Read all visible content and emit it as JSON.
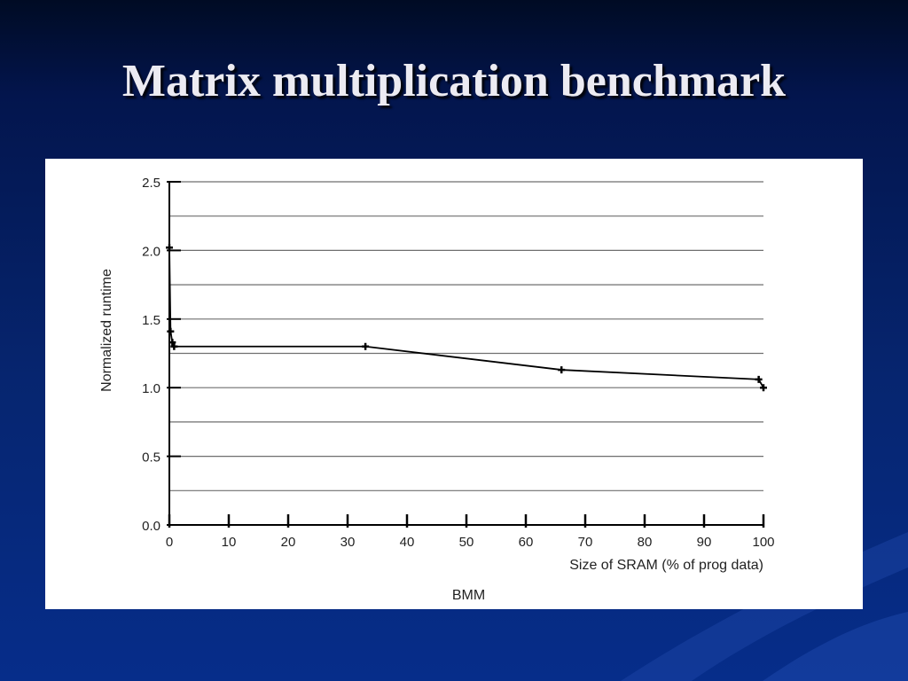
{
  "slide": {
    "title": "Matrix multiplication benchmark"
  },
  "chart_data": {
    "type": "line",
    "caption": "BMM",
    "xlabel": "Size of SRAM (% of prog data)",
    "ylabel": "Normalized runtime",
    "xlim": [
      0,
      100
    ],
    "ylim": [
      0,
      2.5
    ],
    "xticks": [
      "0",
      "10",
      "20",
      "30",
      "40",
      "50",
      "60",
      "70",
      "80",
      "90",
      "100"
    ],
    "yticks": [
      "0.0",
      "0.5",
      "1.0",
      "1.5",
      "2.0",
      "2.5"
    ],
    "grid": true,
    "series": [
      {
        "x": [
          0,
          0.2,
          0.5,
          0.8,
          33,
          66,
          99.2,
          100
        ],
        "y": [
          2.02,
          1.41,
          1.33,
          1.3,
          1.3,
          1.13,
          1.06,
          1.0
        ]
      }
    ]
  },
  "colors": {
    "background_top": "#000b24",
    "background_bottom": "#062d8a",
    "title_text": "#ecebf2",
    "plot_line": "#000000",
    "gridline": "#6f6f6f"
  }
}
